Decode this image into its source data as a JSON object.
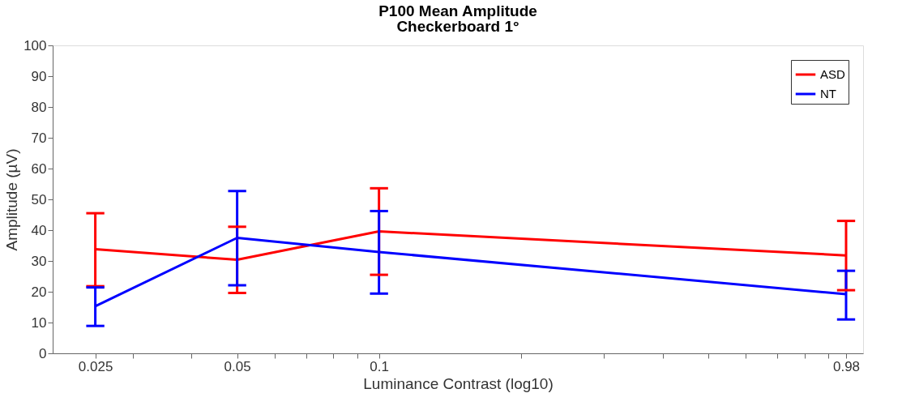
{
  "chart_data": {
    "type": "line",
    "title": "P100 Mean Amplitude",
    "subtitle": "Checkerboard 1°",
    "xlabel": "Luminance Contrast (log10)",
    "ylabel": "Amplitude (µV)",
    "x": [
      0.025,
      0.05,
      0.1,
      0.98
    ],
    "series": [
      {
        "name": "ASD",
        "color": "#ff0000",
        "values": [
          33.8,
          30.4,
          39.6,
          31.8
        ],
        "errors": [
          [
            21.8,
            45.5
          ],
          [
            19.6,
            41.1
          ],
          [
            25.5,
            53.6
          ],
          [
            20.5,
            43.0
          ]
        ]
      },
      {
        "name": "NT",
        "color": "#0000ff",
        "values": [
          15.3,
          37.5,
          32.9,
          19.2
        ],
        "errors": [
          [
            8.9,
            21.4
          ],
          [
            22.1,
            52.7
          ],
          [
            19.4,
            46.2
          ],
          [
            11.0,
            26.8
          ]
        ]
      }
    ],
    "log": "x",
    "xlim": [
      0.0203,
      1.065
    ],
    "ylim": [
      0,
      100
    ],
    "xticks": [
      0.025,
      {
        "value": 0.03,
        "label": null
      },
      {
        "value": 0.04,
        "label": null
      },
      0.05,
      {
        "value": 0.06,
        "label": null
      },
      {
        "value": 0.07,
        "label": null
      },
      {
        "value": 0.08,
        "label": null
      },
      {
        "value": 0.09,
        "label": null
      },
      0.1,
      {
        "value": 0.2,
        "label": null
      },
      {
        "value": 0.3,
        "label": null
      },
      {
        "value": 0.4,
        "label": null
      },
      {
        "value": 0.5,
        "label": null
      },
      {
        "value": 0.6,
        "label": null
      },
      {
        "value": 0.7,
        "label": null
      },
      {
        "value": 0.8,
        "label": null
      },
      {
        "value": 0.9,
        "label": null
      },
      0.98
    ],
    "yticks": [
      0,
      10,
      20,
      30,
      40,
      50,
      60,
      70,
      80,
      90,
      100
    ],
    "grid": false,
    "legend": "top right",
    "marker": "none",
    "line_style": "solid"
  }
}
